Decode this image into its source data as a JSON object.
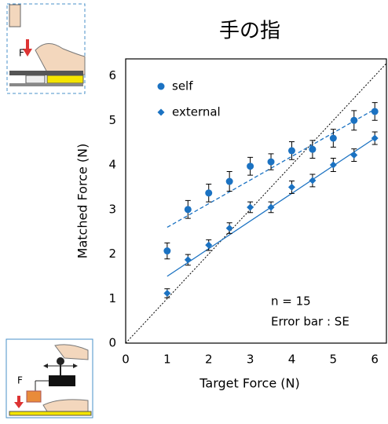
{
  "chart_data": {
    "type": "scatter",
    "title": "手の指",
    "x_label": "Target Force (N)",
    "y_label": "Matched Force (N)",
    "x": [
      1,
      1.5,
      2,
      2.5,
      3,
      3.5,
      4,
      4.5,
      5,
      5.5,
      6
    ],
    "series": [
      {
        "name": "self",
        "color": "#1b72c2",
        "marker": "circle",
        "values": [
          2.07,
          3.0,
          3.37,
          3.63,
          3.97,
          4.07,
          4.32,
          4.35,
          4.6,
          5.0,
          5.2
        ],
        "errors": [
          0.18,
          0.2,
          0.2,
          0.22,
          0.2,
          0.18,
          0.2,
          0.2,
          0.2,
          0.22,
          0.2
        ],
        "fit": {
          "x": [
            1,
            6
          ],
          "y": [
            2.6,
            5.25
          ],
          "dash": true
        }
      },
      {
        "name": "external",
        "color": "#1b72c2",
        "marker": "diamond",
        "values": [
          1.12,
          1.87,
          2.2,
          2.58,
          3.05,
          3.05,
          3.5,
          3.65,
          4.0,
          4.22,
          4.6
        ],
        "errors": [
          0.1,
          0.12,
          0.12,
          0.12,
          0.12,
          0.12,
          0.14,
          0.14,
          0.15,
          0.14,
          0.14
        ],
        "fit": {
          "x": [
            1,
            6
          ],
          "y": [
            1.5,
            4.6
          ],
          "dash": false
        }
      }
    ],
    "xlim": [
      0,
      6.28
    ],
    "ylim": [
      0,
      6.38
    ],
    "xticks": [
      0,
      1,
      2,
      3,
      4,
      5,
      6
    ],
    "yticks": [
      0,
      1,
      2,
      3,
      4,
      5,
      6
    ],
    "identity_line": true,
    "legend": "upper left",
    "annotations": [
      "n = 15",
      "Error bar : SE"
    ],
    "illustration_labels": [
      "F",
      "F"
    ]
  }
}
